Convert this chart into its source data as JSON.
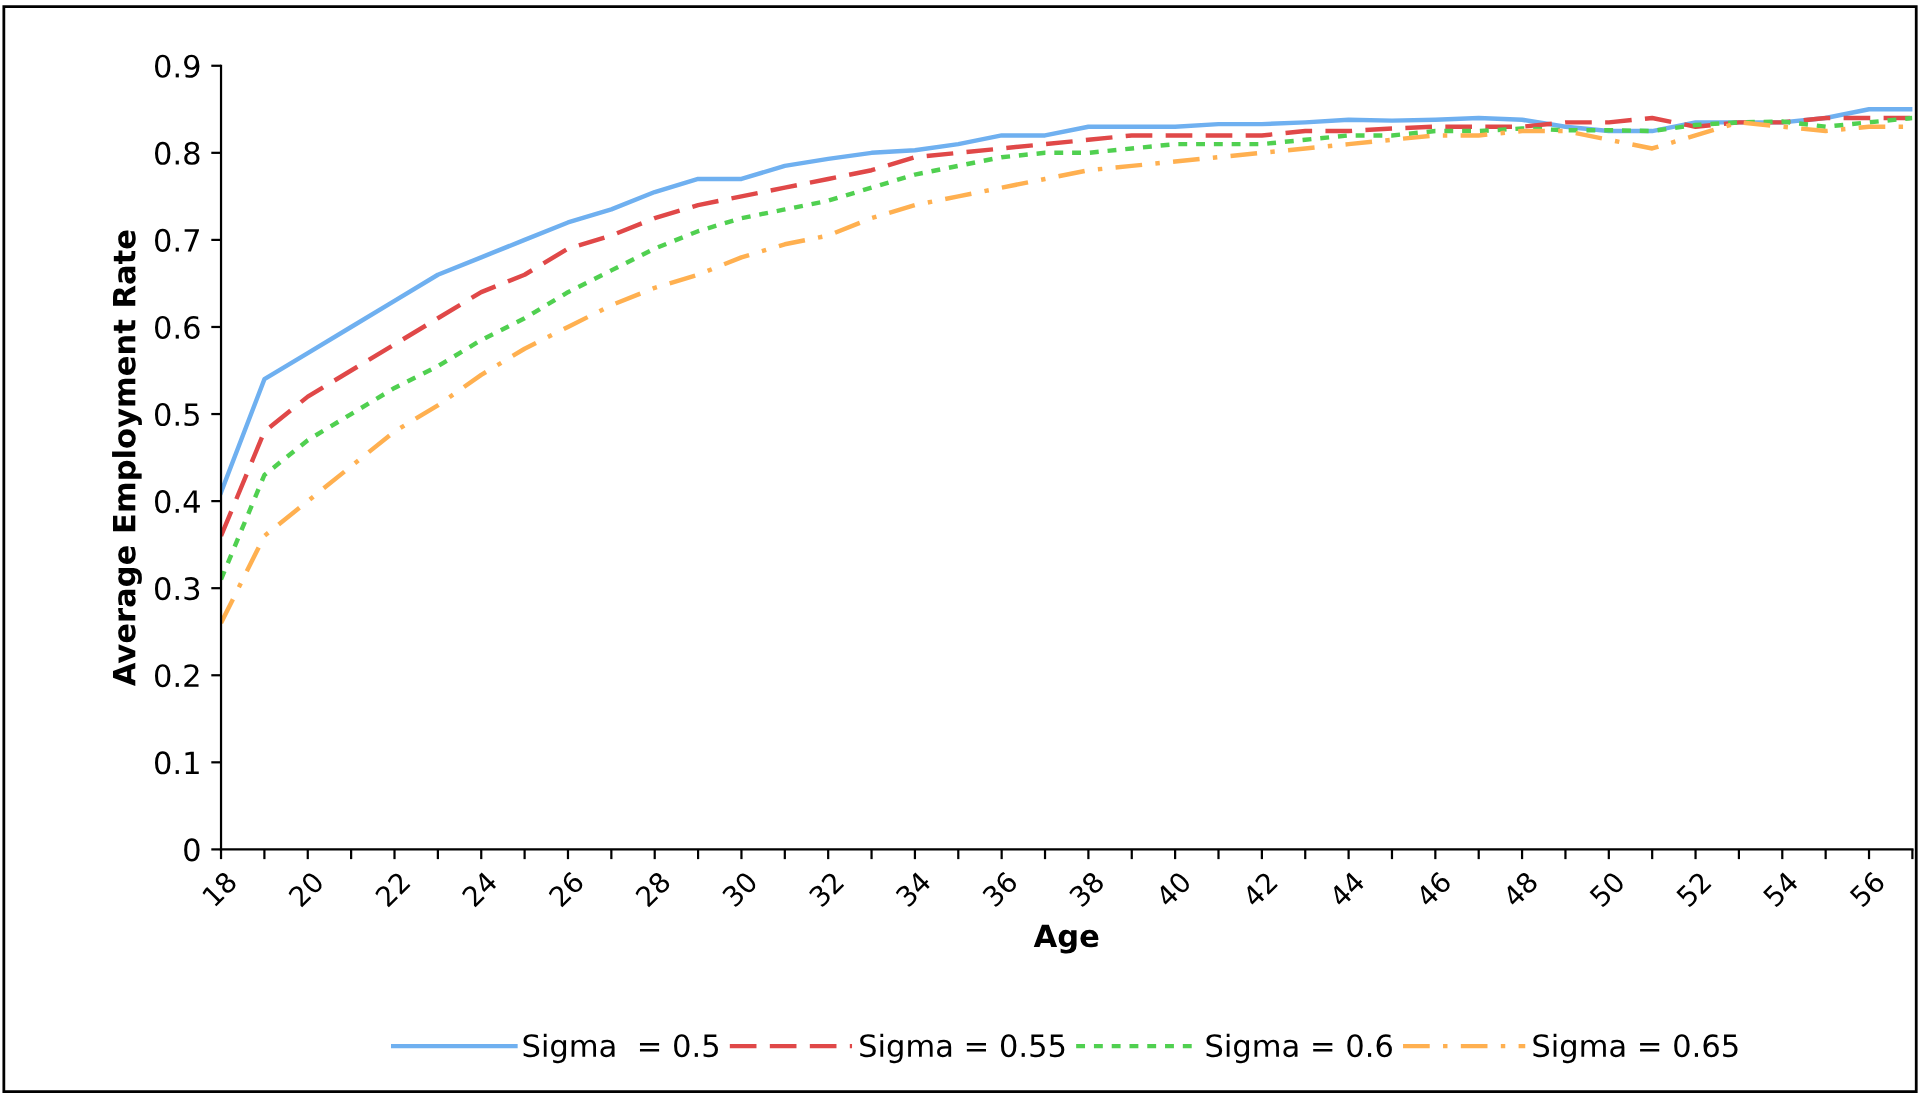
{
  "chart_data": {
    "type": "line",
    "xlabel": "Age",
    "ylabel": "Average Employment Rate",
    "categories": [
      "18",
      null,
      "20",
      null,
      "22",
      null,
      "24",
      null,
      "26",
      null,
      "28",
      null,
      "30",
      null,
      "32",
      null,
      "34",
      null,
      "36",
      null,
      "38",
      null,
      "40",
      null,
      "42",
      null,
      "44",
      null,
      "46",
      null,
      "48",
      null,
      "50",
      null,
      "52",
      null,
      "54",
      null,
      "56",
      null
    ],
    "ylim": [
      0,
      0.9
    ],
    "yticks": [
      0,
      0.1,
      0.2,
      0.3,
      0.4,
      0.5,
      0.6,
      0.7,
      0.8,
      0.9
    ],
    "grid": false,
    "legend": "bottom",
    "marker": "none",
    "series": [
      {
        "name": "Sigma  = 0.5",
        "color": "#6fb0f0",
        "line_style": "solid",
        "values": [
          0.41,
          0.54,
          0.57,
          0.6,
          0.63,
          0.66,
          0.68,
          0.7,
          0.72,
          0.735,
          0.755,
          0.77,
          0.77,
          0.785,
          0.793,
          0.8,
          0.803,
          0.81,
          0.82,
          0.82,
          0.83,
          0.83,
          0.83,
          0.833,
          0.833,
          0.835,
          0.838,
          0.837,
          0.838,
          0.84,
          0.838,
          0.83,
          0.825,
          0.825,
          0.835,
          0.835,
          0.835,
          0.84,
          0.85,
          0.85
        ]
      },
      {
        "name": "Sigma = 0.55",
        "color": "#e04848",
        "line_style": "dashed",
        "values": [
          0.36,
          0.48,
          0.52,
          0.55,
          0.58,
          0.61,
          0.64,
          0.66,
          0.69,
          0.705,
          0.725,
          0.74,
          0.75,
          0.76,
          0.77,
          0.78,
          0.795,
          0.8,
          0.805,
          0.81,
          0.815,
          0.82,
          0.82,
          0.82,
          0.82,
          0.825,
          0.825,
          0.828,
          0.83,
          0.83,
          0.83,
          0.835,
          0.835,
          0.84,
          0.83,
          0.835,
          0.835,
          0.84,
          0.84,
          0.84
        ]
      },
      {
        "name": "Sigma = 0.6",
        "color": "#50d050",
        "line_style": "dotted",
        "values": [
          0.31,
          0.43,
          0.47,
          0.5,
          0.53,
          0.555,
          0.585,
          0.61,
          0.64,
          0.665,
          0.69,
          0.71,
          0.725,
          0.735,
          0.745,
          0.76,
          0.775,
          0.785,
          0.795,
          0.8,
          0.8,
          0.805,
          0.81,
          0.81,
          0.81,
          0.815,
          0.82,
          0.82,
          0.825,
          0.825,
          0.828,
          0.826,
          0.826,
          0.825,
          0.832,
          0.835,
          0.836,
          0.83,
          0.835,
          0.84
        ]
      },
      {
        "name": "Sigma = 0.65",
        "color": "#ffb050",
        "line_style": "dashdot",
        "values": [
          0.26,
          0.36,
          0.4,
          0.44,
          0.48,
          0.51,
          0.545,
          0.575,
          0.6,
          0.625,
          0.645,
          0.66,
          0.68,
          0.695,
          0.705,
          0.725,
          0.74,
          0.75,
          0.76,
          0.77,
          0.78,
          0.785,
          0.79,
          0.795,
          0.8,
          0.805,
          0.81,
          0.815,
          0.82,
          0.82,
          0.825,
          0.825,
          0.815,
          0.805,
          0.82,
          0.835,
          0.83,
          0.825,
          0.83,
          0.83
        ]
      }
    ]
  }
}
